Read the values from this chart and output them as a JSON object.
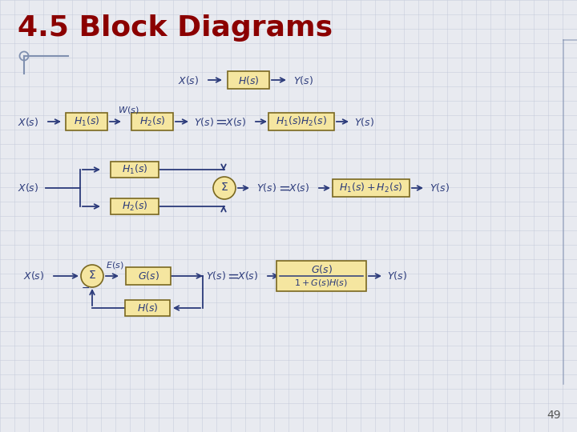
{
  "title": "4.5 Block Diagrams",
  "title_color": "#8B0000",
  "title_fontsize": 26,
  "bg_color": "#E8EAF0",
  "grid_color": "#C0C8D8",
  "box_fill": "#F5E6A0",
  "box_edge": "#7A6820",
  "arrow_color": "#2B3A7A",
  "text_color": "#2B3A7A",
  "sigma_fill": "#F5E6A0",
  "sigma_edge": "#7A6820",
  "page_number": "49",
  "deco_color": "#8090B0"
}
